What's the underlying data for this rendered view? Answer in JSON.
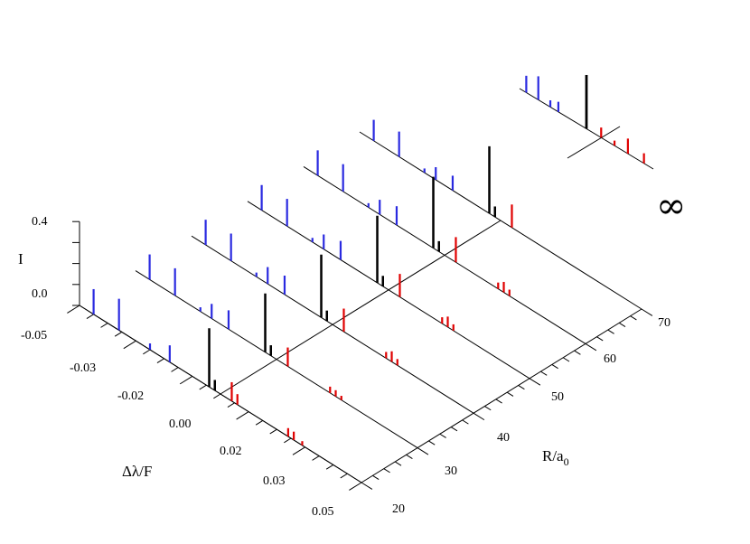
{
  "chart_data": {
    "type": "3d-stick-spectrum",
    "axes": {
      "x": {
        "label": "Δλ/F",
        "ticks": [
          "-0.05",
          "-0.03",
          "-0.02",
          "0.00",
          "0.02",
          "0.03",
          "0.05"
        ],
        "range": [
          -0.05,
          0.05
        ]
      },
      "y": {
        "label": "R/a",
        "label_subscript": "0",
        "ticks": [
          "20",
          "30",
          "40",
          "50",
          "60",
          "70"
        ],
        "range": [
          20,
          70
        ]
      },
      "z": {
        "label": "I",
        "ticks": [
          "0.0",
          "0.4"
        ],
        "range": [
          0,
          0.4
        ]
      }
    },
    "infinity_label": "∞",
    "colors": {
      "blue": "#2a2ae0",
      "red": "#e00000",
      "black": "#000000",
      "axis": "#000000"
    },
    "series": [
      {
        "name": "",
        "R": 20,
        "lines": [
          {
            "x": -0.045,
            "h": 0.12,
            "c": "blue"
          },
          {
            "x": -0.036,
            "h": 0.15,
            "c": "blue"
          },
          {
            "x": -0.025,
            "h": 0.03,
            "c": "blue"
          },
          {
            "x": -0.018,
            "h": 0.08,
            "c": "blue"
          },
          {
            "x": -0.004,
            "h": 0.28,
            "c": "black"
          },
          {
            "x": -0.002,
            "h": 0.05,
            "c": "black"
          },
          {
            "x": 0.004,
            "h": 0.09,
            "c": "red"
          },
          {
            "x": 0.006,
            "h": 0.05,
            "c": "red"
          },
          {
            "x": 0.024,
            "h": 0.04,
            "c": "red"
          },
          {
            "x": 0.026,
            "h": 0.04,
            "c": "red"
          },
          {
            "x": 0.029,
            "h": 0.02,
            "c": "red"
          }
        ]
      },
      {
        "name": "",
        "R": 30,
        "lines": [
          {
            "x": -0.045,
            "h": 0.12,
            "c": "blue"
          },
          {
            "x": -0.036,
            "h": 0.13,
            "c": "blue"
          },
          {
            "x": -0.027,
            "h": 0.02,
            "c": "blue"
          },
          {
            "x": -0.023,
            "h": 0.07,
            "c": "blue"
          },
          {
            "x": -0.017,
            "h": 0.09,
            "c": "blue"
          },
          {
            "x": -0.004,
            "h": 0.28,
            "c": "black"
          },
          {
            "x": -0.002,
            "h": 0.05,
            "c": "black"
          },
          {
            "x": 0.004,
            "h": 0.09,
            "c": "red"
          },
          {
            "x": 0.019,
            "h": 0.03,
            "c": "red"
          },
          {
            "x": 0.021,
            "h": 0.03,
            "c": "red"
          },
          {
            "x": 0.023,
            "h": 0.02,
            "c": "red"
          }
        ]
      },
      {
        "name": "",
        "R": 40,
        "lines": [
          {
            "x": -0.045,
            "h": 0.12,
            "c": "blue"
          },
          {
            "x": -0.036,
            "h": 0.13,
            "c": "blue"
          },
          {
            "x": -0.027,
            "h": 0.02,
            "c": "blue"
          },
          {
            "x": -0.023,
            "h": 0.08,
            "c": "blue"
          },
          {
            "x": -0.017,
            "h": 0.09,
            "c": "blue"
          },
          {
            "x": -0.004,
            "h": 0.3,
            "c": "black"
          },
          {
            "x": -0.002,
            "h": 0.05,
            "c": "black"
          },
          {
            "x": 0.004,
            "h": 0.11,
            "c": "red"
          },
          {
            "x": 0.019,
            "h": 0.03,
            "c": "red"
          },
          {
            "x": 0.021,
            "h": 0.05,
            "c": "red"
          },
          {
            "x": 0.023,
            "h": 0.03,
            "c": "red"
          }
        ]
      },
      {
        "name": "",
        "R": 50,
        "lines": [
          {
            "x": -0.045,
            "h": 0.12,
            "c": "blue"
          },
          {
            "x": -0.036,
            "h": 0.13,
            "c": "blue"
          },
          {
            "x": -0.027,
            "h": 0.02,
            "c": "blue"
          },
          {
            "x": -0.023,
            "h": 0.07,
            "c": "blue"
          },
          {
            "x": -0.017,
            "h": 0.09,
            "c": "blue"
          },
          {
            "x": -0.004,
            "h": 0.32,
            "c": "black"
          },
          {
            "x": -0.002,
            "h": 0.05,
            "c": "black"
          },
          {
            "x": 0.004,
            "h": 0.11,
            "c": "red"
          },
          {
            "x": 0.019,
            "h": 0.03,
            "c": "red"
          },
          {
            "x": 0.021,
            "h": 0.05,
            "c": "red"
          },
          {
            "x": 0.023,
            "h": 0.03,
            "c": "red"
          }
        ]
      },
      {
        "name": "",
        "R": 60,
        "lines": [
          {
            "x": -0.045,
            "h": 0.12,
            "c": "blue"
          },
          {
            "x": -0.036,
            "h": 0.13,
            "c": "blue"
          },
          {
            "x": -0.027,
            "h": 0.02,
            "c": "blue"
          },
          {
            "x": -0.023,
            "h": 0.07,
            "c": "blue"
          },
          {
            "x": -0.017,
            "h": 0.09,
            "c": "blue"
          },
          {
            "x": -0.004,
            "h": 0.34,
            "c": "black"
          },
          {
            "x": -0.002,
            "h": 0.05,
            "c": "black"
          },
          {
            "x": 0.004,
            "h": 0.12,
            "c": "red"
          },
          {
            "x": 0.019,
            "h": 0.03,
            "c": "red"
          },
          {
            "x": 0.021,
            "h": 0.05,
            "c": "red"
          },
          {
            "x": 0.023,
            "h": 0.03,
            "c": "red"
          }
        ]
      },
      {
        "name": "",
        "R": 70,
        "lines": [
          {
            "x": -0.045,
            "h": 0.1,
            "c": "blue"
          },
          {
            "x": -0.036,
            "h": 0.12,
            "c": "blue"
          },
          {
            "x": -0.027,
            "h": 0.02,
            "c": "blue"
          },
          {
            "x": -0.023,
            "h": 0.06,
            "c": "blue"
          },
          {
            "x": -0.017,
            "h": 0.07,
            "c": "blue"
          },
          {
            "x": -0.004,
            "h": 0.32,
            "c": "black"
          },
          {
            "x": -0.002,
            "h": 0.05,
            "c": "black"
          },
          {
            "x": 0.004,
            "h": 0.11,
            "c": "red"
          }
        ]
      }
    ],
    "infinity_spectrum": {
      "R": "∞",
      "lines": [
        {
          "x": -0.045,
          "h": 0.1,
          "c": "blue"
        },
        {
          "x": -0.036,
          "h": 0.14,
          "c": "blue"
        },
        {
          "x": -0.027,
          "h": 0.04,
          "c": "blue"
        },
        {
          "x": -0.021,
          "h": 0.06,
          "c": "blue"
        },
        {
          "x": 0.0,
          "h": 0.32,
          "c": "black"
        },
        {
          "x": 0.011,
          "h": 0.06,
          "c": "red"
        },
        {
          "x": 0.021,
          "h": 0.03,
          "c": "red"
        },
        {
          "x": 0.031,
          "h": 0.09,
          "c": "red"
        },
        {
          "x": 0.043,
          "h": 0.06,
          "c": "red"
        }
      ]
    }
  }
}
